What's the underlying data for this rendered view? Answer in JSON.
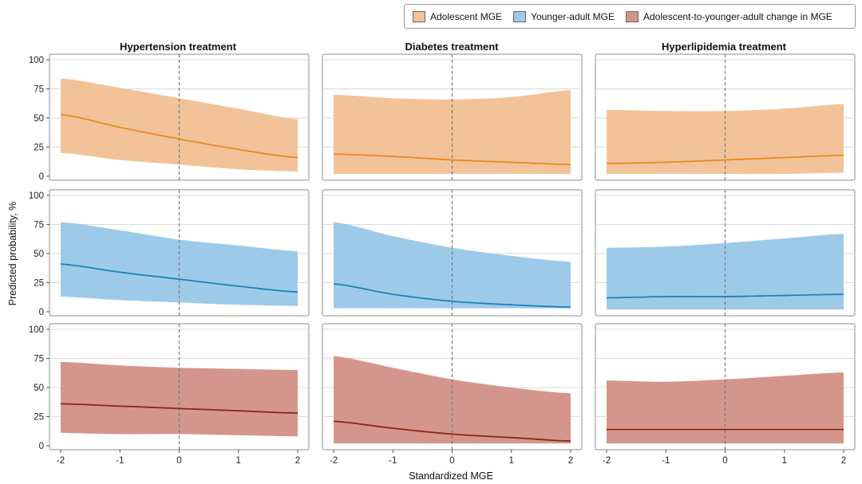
{
  "legend": {
    "items": [
      {
        "label": "Adolescent MGE",
        "color": "#f2c399"
      },
      {
        "label": "Younger-adult MGE",
        "color": "#9ecae9"
      },
      {
        "label": "Adolescent-to-younger-adult change in MGE",
        "color": "#d4968c"
      }
    ]
  },
  "chart_data": {
    "type": "area",
    "facets": {
      "columns": [
        "Hypertension treatment",
        "Diabetes treatment",
        "Hyperlipidemia treatment"
      ],
      "rows": [
        "Adolescent MGE",
        "Younger-adult MGE",
        "Adolescent-to-younger-adult change in MGE"
      ]
    },
    "xlabel": "Standardized MGE",
    "ylabel": "Predicted probability, %",
    "xlim": [
      -2,
      2
    ],
    "ylim": [
      0,
      100
    ],
    "xticks": [
      -2,
      -1,
      0,
      1,
      2
    ],
    "yticks": [
      0,
      25,
      50,
      75,
      100
    ],
    "reference_line_x": 0,
    "grid": "horizontal",
    "legend_position": "top-right",
    "colors": {
      "Adolescent MGE": {
        "band": "#f2c399",
        "line": "#e8891f"
      },
      "Younger-adult MGE": {
        "band": "#9ecae9",
        "line": "#1c82b8"
      },
      "Adolescent-to-younger-adult change in MGE": {
        "band": "#d4968c",
        "line": "#8f2418"
      }
    },
    "x": [
      -2,
      -1,
      0,
      1,
      2
    ],
    "panels": [
      {
        "row": 0,
        "col": 0,
        "estimate": [
          53,
          42,
          32,
          23,
          16
        ],
        "lower": [
          20,
          14,
          10,
          6,
          4
        ],
        "upper": [
          84,
          76,
          67,
          58,
          49
        ]
      },
      {
        "row": 0,
        "col": 1,
        "estimate": [
          19,
          17,
          14,
          12,
          10
        ],
        "lower": [
          2,
          2,
          2,
          2,
          2
        ],
        "upper": [
          70,
          67,
          66,
          68,
          74
        ]
      },
      {
        "row": 0,
        "col": 2,
        "estimate": [
          11,
          12,
          14,
          16,
          18
        ],
        "lower": [
          2,
          2,
          2,
          2,
          3
        ],
        "upper": [
          57,
          56,
          56,
          58,
          62
        ]
      },
      {
        "row": 1,
        "col": 0,
        "estimate": [
          41,
          34,
          28,
          22,
          17
        ],
        "lower": [
          13,
          10,
          8,
          6,
          5
        ],
        "upper": [
          77,
          70,
          62,
          57,
          52
        ]
      },
      {
        "row": 1,
        "col": 1,
        "estimate": [
          24,
          15,
          9,
          6,
          4
        ],
        "lower": [
          3,
          3,
          3,
          3,
          3
        ],
        "upper": [
          77,
          65,
          55,
          48,
          43
        ]
      },
      {
        "row": 1,
        "col": 2,
        "estimate": [
          12,
          13,
          13,
          14,
          15
        ],
        "lower": [
          2,
          2,
          2,
          2,
          2
        ],
        "upper": [
          55,
          56,
          59,
          63,
          67
        ]
      },
      {
        "row": 2,
        "col": 0,
        "estimate": [
          36,
          34,
          32,
          30,
          28
        ],
        "lower": [
          11,
          10,
          10,
          9,
          8
        ],
        "upper": [
          72,
          69,
          67,
          66,
          65
        ]
      },
      {
        "row": 2,
        "col": 1,
        "estimate": [
          21,
          15,
          10,
          7,
          4
        ],
        "lower": [
          2,
          2,
          2,
          2,
          2
        ],
        "upper": [
          77,
          67,
          57,
          50,
          45
        ]
      },
      {
        "row": 2,
        "col": 2,
        "estimate": [
          14,
          14,
          14,
          14,
          14
        ],
        "lower": [
          2,
          2,
          2,
          2,
          2
        ],
        "upper": [
          56,
          55,
          57,
          60,
          63
        ]
      }
    ]
  }
}
